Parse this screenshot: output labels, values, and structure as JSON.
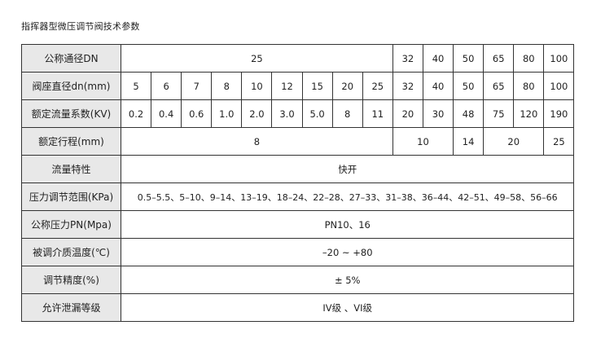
{
  "title": "指挥器型微压调节阀技术参数",
  "rows": {
    "dn": {
      "label": "公称通径DN",
      "values": [
        "25",
        "32",
        "40",
        "50",
        "65",
        "80",
        "100"
      ]
    },
    "seat": {
      "label": "阀座直径dn(mm)",
      "values": [
        "5",
        "6",
        "7",
        "8",
        "10",
        "12",
        "15",
        "20",
        "25",
        "32",
        "40",
        "50",
        "65",
        "80",
        "100"
      ]
    },
    "kv": {
      "label": "额定流量系数(KV)",
      "values": [
        "0.2",
        "0.4",
        "0.6",
        "1.0",
        "2.0",
        "3.0",
        "5.0",
        "8",
        "11",
        "20",
        "30",
        "48",
        "75",
        "120",
        "190"
      ]
    },
    "stroke": {
      "label": "额定行程(mm)",
      "values": [
        "8",
        "10",
        "14",
        "20",
        "25"
      ]
    },
    "flow": {
      "label": "流量特性",
      "value": "快开"
    },
    "pressure_range": {
      "label": "压力调节范围(KPa)",
      "value": "0.5–5.5、5–10、9–14、13–19、18–24、22–28、27–33、31–38、36–44、42–51、49–58、56–66"
    },
    "pn": {
      "label": "公称压力PN(Mpa)",
      "value": "PN10、16"
    },
    "temp": {
      "label": "被调介质温度(℃)",
      "value": "–20 ~ +80"
    },
    "accuracy": {
      "label": "调节精度(%)",
      "value": "± 5%"
    },
    "leakage": {
      "label": "允许泄漏等级",
      "value": "IV级 、VI级"
    }
  }
}
